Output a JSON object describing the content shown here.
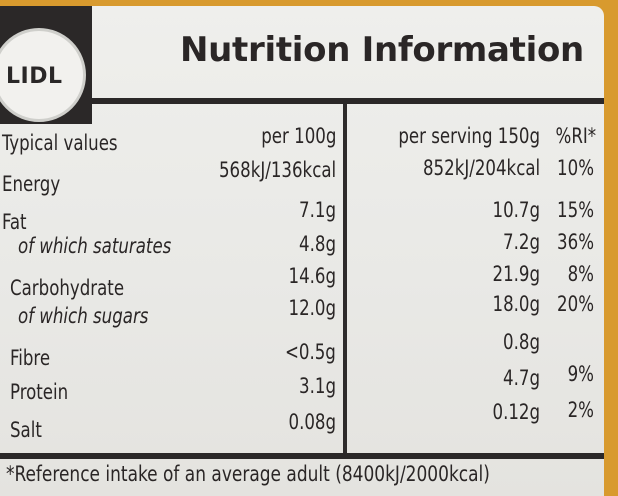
{
  "title": "Nutrition Information",
  "logo": {
    "text": "LIDL"
  },
  "headers": {
    "typical_values": "Typical values",
    "per_100g": "per 100g",
    "per_serving": "per serving 150g",
    "ri": "%RI*"
  },
  "rows": [
    {
      "label": "Energy",
      "per_100g": "568kJ/136kcal",
      "per_serving": "852kJ/204kcal",
      "ri": "10%"
    },
    {
      "label": "Fat",
      "per_100g": "7.1g",
      "per_serving": "10.7g",
      "ri": "15%"
    },
    {
      "label": "of which saturates",
      "per_100g": "4.8g",
      "per_serving": "7.2g",
      "ri": "36%"
    },
    {
      "label": "Carbohydrate",
      "per_100g": "14.6g",
      "per_serving": "21.9g",
      "ri": "8%"
    },
    {
      "label": "of which sugars",
      "per_100g": "12.0g",
      "per_serving": "18.0g",
      "ri": "20%"
    },
    {
      "label": "Fibre",
      "per_100g": "<0.5g",
      "per_serving": "0.8g",
      "ri": ""
    },
    {
      "label": "Protein",
      "per_100g": "3.1g",
      "per_serving": "4.7g",
      "ri": "9%"
    },
    {
      "label": "Salt",
      "per_100g": "0.08g",
      "per_serving": "0.12g",
      "ri": "2%"
    }
  ],
  "footnote": "*Reference intake of an average adult (8400kJ/2000kcal)",
  "colors": {
    "container_orange": "#d89a2e",
    "label_white": "#efefec",
    "ink": "#2a2626"
  }
}
